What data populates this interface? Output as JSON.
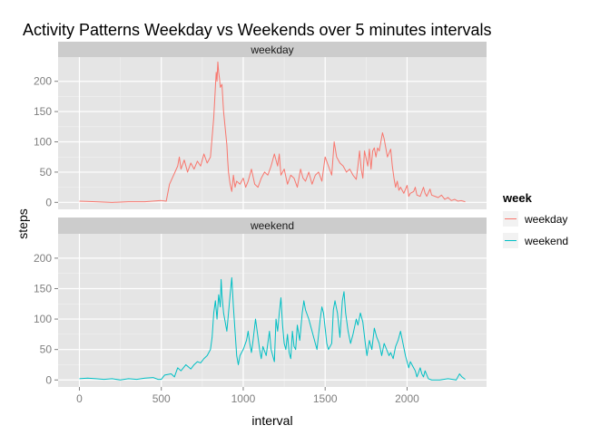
{
  "chart_data": {
    "type": "line",
    "title": "Activity Patterns Weekday vs Weekends over 5 minutes intervals",
    "xlabel": "interval",
    "ylabel": "steps",
    "xlim": [
      -130,
      2485
    ],
    "ylim": [
      -11.5,
      240
    ],
    "x_ticks": [
      0,
      500,
      1000,
      1500,
      2000
    ],
    "y_ticks": [
      0,
      50,
      100,
      150,
      200
    ],
    "grid": true,
    "legend": {
      "title": "week",
      "position": "right"
    },
    "panels": [
      {
        "label": "weekday",
        "series": "weekday",
        "color": "#F8766D",
        "points": [
          [
            0,
            2
          ],
          [
            100,
            1
          ],
          [
            200,
            0
          ],
          [
            300,
            1
          ],
          [
            400,
            1
          ],
          [
            500,
            3
          ],
          [
            530,
            2
          ],
          [
            550,
            30
          ],
          [
            600,
            60
          ],
          [
            610,
            75
          ],
          [
            620,
            55
          ],
          [
            640,
            70
          ],
          [
            660,
            50
          ],
          [
            680,
            65
          ],
          [
            700,
            55
          ],
          [
            720,
            68
          ],
          [
            740,
            60
          ],
          [
            760,
            80
          ],
          [
            780,
            65
          ],
          [
            800,
            75
          ],
          [
            820,
            140
          ],
          [
            830,
            190
          ],
          [
            835,
            215
          ],
          [
            840,
            200
          ],
          [
            845,
            232
          ],
          [
            850,
            215
          ],
          [
            855,
            205
          ],
          [
            860,
            190
          ],
          [
            870,
            195
          ],
          [
            880,
            150
          ],
          [
            900,
            95
          ],
          [
            905,
            70
          ],
          [
            910,
            50
          ],
          [
            920,
            30
          ],
          [
            930,
            18
          ],
          [
            940,
            45
          ],
          [
            950,
            25
          ],
          [
            960,
            35
          ],
          [
            980,
            30
          ],
          [
            1000,
            40
          ],
          [
            1015,
            25
          ],
          [
            1030,
            35
          ],
          [
            1050,
            55
          ],
          [
            1070,
            30
          ],
          [
            1090,
            25
          ],
          [
            1110,
            40
          ],
          [
            1130,
            50
          ],
          [
            1150,
            45
          ],
          [
            1170,
            60
          ],
          [
            1190,
            80
          ],
          [
            1210,
            60
          ],
          [
            1220,
            80
          ],
          [
            1230,
            45
          ],
          [
            1250,
            55
          ],
          [
            1270,
            30
          ],
          [
            1290,
            45
          ],
          [
            1310,
            40
          ],
          [
            1330,
            25
          ],
          [
            1350,
            55
          ],
          [
            1365,
            40
          ],
          [
            1380,
            35
          ],
          [
            1400,
            50
          ],
          [
            1420,
            30
          ],
          [
            1440,
            45
          ],
          [
            1460,
            50
          ],
          [
            1480,
            35
          ],
          [
            1500,
            75
          ],
          [
            1520,
            60
          ],
          [
            1540,
            45
          ],
          [
            1555,
            100
          ],
          [
            1570,
            75
          ],
          [
            1590,
            65
          ],
          [
            1610,
            60
          ],
          [
            1630,
            50
          ],
          [
            1650,
            55
          ],
          [
            1670,
            45
          ],
          [
            1690,
            38
          ],
          [
            1700,
            60
          ],
          [
            1710,
            85
          ],
          [
            1720,
            55
          ],
          [
            1730,
            40
          ],
          [
            1740,
            85
          ],
          [
            1760,
            60
          ],
          [
            1770,
            88
          ],
          [
            1780,
            55
          ],
          [
            1790,
            85
          ],
          [
            1800,
            90
          ],
          [
            1810,
            75
          ],
          [
            1820,
            90
          ],
          [
            1830,
            85
          ],
          [
            1840,
            100
          ],
          [
            1850,
            115
          ],
          [
            1860,
            105
          ],
          [
            1870,
            90
          ],
          [
            1880,
            75
          ],
          [
            1900,
            88
          ],
          [
            1910,
            60
          ],
          [
            1920,
            40
          ],
          [
            1930,
            25
          ],
          [
            1940,
            35
          ],
          [
            1950,
            20
          ],
          [
            1960,
            25
          ],
          [
            1980,
            15
          ],
          [
            2000,
            28
          ],
          [
            2010,
            10
          ],
          [
            2020,
            15
          ],
          [
            2040,
            18
          ],
          [
            2050,
            25
          ],
          [
            2060,
            12
          ],
          [
            2080,
            10
          ],
          [
            2100,
            25
          ],
          [
            2110,
            15
          ],
          [
            2120,
            10
          ],
          [
            2140,
            22
          ],
          [
            2150,
            12
          ],
          [
            2170,
            10
          ],
          [
            2190,
            8
          ],
          [
            2210,
            12
          ],
          [
            2230,
            5
          ],
          [
            2250,
            8
          ],
          [
            2270,
            3
          ],
          [
            2290,
            5
          ],
          [
            2310,
            2
          ],
          [
            2330,
            3
          ],
          [
            2355,
            1
          ]
        ]
      },
      {
        "label": "weekend",
        "series": "weekend",
        "color": "#00BFC4",
        "points": [
          [
            0,
            2
          ],
          [
            50,
            3
          ],
          [
            100,
            2
          ],
          [
            150,
            1
          ],
          [
            200,
            2
          ],
          [
            250,
            0
          ],
          [
            300,
            2
          ],
          [
            350,
            1
          ],
          [
            400,
            3
          ],
          [
            450,
            4
          ],
          [
            480,
            1
          ],
          [
            500,
            1
          ],
          [
            520,
            8
          ],
          [
            560,
            10
          ],
          [
            580,
            5
          ],
          [
            600,
            20
          ],
          [
            620,
            15
          ],
          [
            650,
            25
          ],
          [
            680,
            18
          ],
          [
            700,
            25
          ],
          [
            720,
            30
          ],
          [
            740,
            28
          ],
          [
            760,
            35
          ],
          [
            780,
            40
          ],
          [
            800,
            50
          ],
          [
            810,
            70
          ],
          [
            820,
            110
          ],
          [
            830,
            130
          ],
          [
            840,
            100
          ],
          [
            850,
            140
          ],
          [
            860,
            120
          ],
          [
            865,
            165
          ],
          [
            870,
            140
          ],
          [
            880,
            110
          ],
          [
            890,
            95
          ],
          [
            900,
            80
          ],
          [
            910,
            110
          ],
          [
            920,
            140
          ],
          [
            930,
            168
          ],
          [
            940,
            120
          ],
          [
            950,
            80
          ],
          [
            960,
            40
          ],
          [
            970,
            25
          ],
          [
            980,
            40
          ],
          [
            1000,
            50
          ],
          [
            1020,
            65
          ],
          [
            1030,
            80
          ],
          [
            1040,
            60
          ],
          [
            1050,
            45
          ],
          [
            1060,
            65
          ],
          [
            1075,
            100
          ],
          [
            1090,
            70
          ],
          [
            1100,
            50
          ],
          [
            1110,
            35
          ],
          [
            1120,
            55
          ],
          [
            1140,
            40
          ],
          [
            1160,
            80
          ],
          [
            1170,
            50
          ],
          [
            1180,
            40
          ],
          [
            1190,
            30
          ],
          [
            1200,
            100
          ],
          [
            1210,
            80
          ],
          [
            1220,
            110
          ],
          [
            1230,
            135
          ],
          [
            1240,
            90
          ],
          [
            1250,
            60
          ],
          [
            1260,
            50
          ],
          [
            1270,
            75
          ],
          [
            1280,
            45
          ],
          [
            1290,
            35
          ],
          [
            1300,
            80
          ],
          [
            1310,
            55
          ],
          [
            1320,
            50
          ],
          [
            1330,
            90
          ],
          [
            1345,
            65
          ],
          [
            1360,
            110
          ],
          [
            1370,
            130
          ],
          [
            1380,
            115
          ],
          [
            1400,
            100
          ],
          [
            1420,
            80
          ],
          [
            1440,
            60
          ],
          [
            1450,
            50
          ],
          [
            1460,
            75
          ],
          [
            1470,
            100
          ],
          [
            1480,
            120
          ],
          [
            1490,
            110
          ],
          [
            1500,
            85
          ],
          [
            1510,
            60
          ],
          [
            1520,
            50
          ],
          [
            1540,
            60
          ],
          [
            1550,
            115
          ],
          [
            1560,
            130
          ],
          [
            1575,
            110
          ],
          [
            1590,
            70
          ],
          [
            1605,
            130
          ],
          [
            1615,
            145
          ],
          [
            1625,
            110
          ],
          [
            1640,
            80
          ],
          [
            1655,
            60
          ],
          [
            1670,
            75
          ],
          [
            1690,
            100
          ],
          [
            1700,
            90
          ],
          [
            1715,
            110
          ],
          [
            1730,
            95
          ],
          [
            1745,
            60
          ],
          [
            1755,
            40
          ],
          [
            1770,
            65
          ],
          [
            1785,
            50
          ],
          [
            1800,
            85
          ],
          [
            1815,
            70
          ],
          [
            1830,
            60
          ],
          [
            1845,
            40
          ],
          [
            1860,
            60
          ],
          [
            1875,
            50
          ],
          [
            1890,
            40
          ],
          [
            1900,
            45
          ],
          [
            1915,
            35
          ],
          [
            1930,
            55
          ],
          [
            1945,
            65
          ],
          [
            1960,
            80
          ],
          [
            1975,
            60
          ],
          [
            1990,
            40
          ],
          [
            2000,
            30
          ],
          [
            2010,
            20
          ],
          [
            2020,
            30
          ],
          [
            2040,
            20
          ],
          [
            2050,
            15
          ],
          [
            2060,
            5
          ],
          [
            2070,
            12
          ],
          [
            2080,
            20
          ],
          [
            2090,
            10
          ],
          [
            2100,
            5
          ],
          [
            2110,
            15
          ],
          [
            2130,
            2
          ],
          [
            2150,
            0
          ],
          [
            2200,
            0
          ],
          [
            2250,
            2
          ],
          [
            2300,
            0
          ],
          [
            2320,
            10
          ],
          [
            2335,
            5
          ],
          [
            2355,
            1
          ]
        ]
      }
    ]
  }
}
